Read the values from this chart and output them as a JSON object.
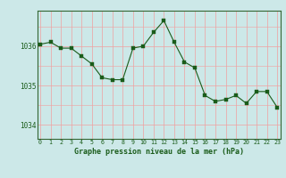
{
  "x": [
    0,
    1,
    2,
    3,
    4,
    5,
    6,
    7,
    8,
    9,
    10,
    11,
    12,
    13,
    14,
    15,
    16,
    17,
    18,
    19,
    20,
    21,
    22,
    23
  ],
  "y": [
    1036.05,
    1036.1,
    1035.95,
    1035.95,
    1035.75,
    1035.55,
    1035.2,
    1035.15,
    1035.15,
    1035.95,
    1036.0,
    1036.35,
    1036.65,
    1036.1,
    1035.6,
    1035.45,
    1034.75,
    1034.6,
    1034.65,
    1034.75,
    1034.55,
    1034.85,
    1034.85,
    1034.45
  ],
  "yticks": [
    1034,
    1035,
    1036
  ],
  "xticks": [
    0,
    1,
    2,
    3,
    4,
    5,
    6,
    7,
    8,
    9,
    10,
    11,
    12,
    13,
    14,
    15,
    16,
    17,
    18,
    19,
    20,
    21,
    22,
    23
  ],
  "ylim": [
    1033.65,
    1036.9
  ],
  "xlim": [
    -0.3,
    23.3
  ],
  "line_color": "#1a5c1a",
  "marker_color": "#1a5c1a",
  "bg_color": "#cce8e8",
  "grid_color": "#f0a0a0",
  "xlabel": "Graphe pression niveau de la mer (hPa)",
  "xlabel_color": "#1a5c1a",
  "tick_color": "#1a5c1a",
  "figsize": [
    3.2,
    2.0
  ],
  "dpi": 100
}
